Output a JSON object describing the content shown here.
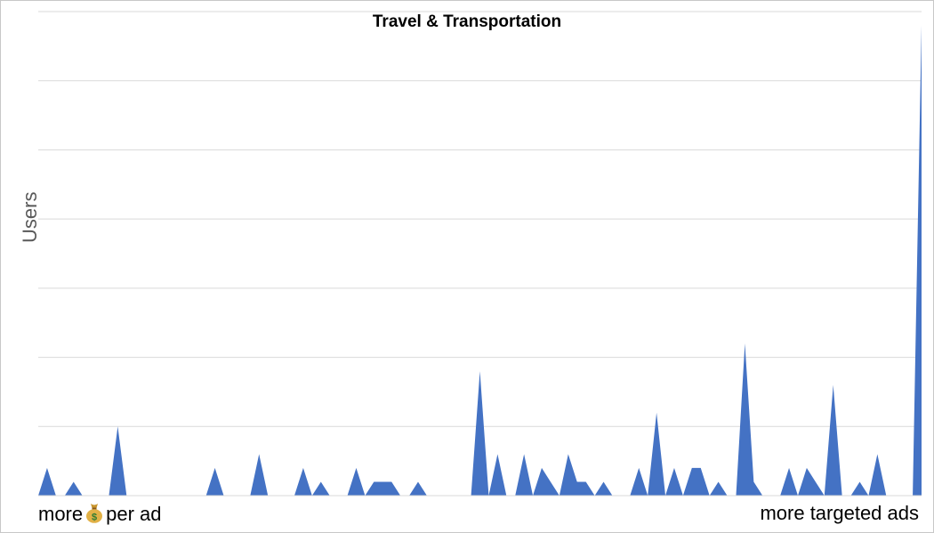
{
  "chart_data": {
    "type": "area",
    "title": "Travel & Transportation",
    "ylabel": "Users",
    "xlabel_left": "more",
    "xlabel_left_icon": "money-bag-icon",
    "xlabel_left_suffix": "per ad",
    "xlabel_right": "more targeted ads",
    "grid": true,
    "ylim": [
      0,
      35
    ],
    "x": [
      0,
      1,
      2,
      3,
      4,
      5,
      6,
      7,
      8,
      9,
      10,
      11,
      12,
      13,
      14,
      15,
      16,
      17,
      18,
      19,
      20,
      21,
      22,
      23,
      24,
      25,
      26,
      27,
      28,
      29,
      30,
      31,
      32,
      33,
      34,
      35,
      36,
      37,
      38,
      39,
      40,
      41,
      42,
      43,
      44,
      45,
      46,
      47,
      48,
      49,
      50,
      51,
      52,
      53,
      54,
      55,
      56,
      57,
      58,
      59,
      60,
      61,
      62,
      63,
      64,
      65,
      66,
      67,
      68,
      69,
      70,
      71,
      72,
      73,
      74,
      75,
      76,
      77,
      78,
      79,
      80,
      81,
      82,
      83,
      84,
      85,
      86,
      87,
      88,
      89,
      90,
      91,
      92,
      93,
      94,
      95,
      96,
      97,
      98,
      99,
      100
    ],
    "series": [
      {
        "values": [
          0,
          2,
          0,
          0,
          1,
          0,
          0,
          0,
          0,
          5,
          0,
          0,
          0,
          0,
          0,
          0,
          0,
          0,
          0,
          0,
          2,
          0,
          0,
          0,
          0,
          3,
          0,
          0,
          0,
          0,
          2,
          0,
          1,
          0,
          0,
          0,
          2,
          0,
          1,
          1,
          1,
          0,
          0,
          1,
          0,
          0,
          0,
          0,
          0,
          0,
          9,
          0,
          3,
          0,
          0,
          3,
          0,
          2,
          1,
          0,
          3,
          1,
          1,
          0,
          1,
          0,
          0,
          0,
          2,
          0,
          6,
          0,
          2,
          0,
          2,
          2,
          0,
          1,
          0,
          0,
          11,
          1,
          0,
          0,
          0,
          2,
          0,
          2,
          1,
          0,
          8,
          0,
          0,
          1,
          0,
          3,
          0,
          0,
          0,
          0,
          34
        ]
      }
    ],
    "colors": {
      "fill": "#4472c4",
      "grid": "#d9d9d9",
      "border": "#c8c8c8"
    }
  }
}
